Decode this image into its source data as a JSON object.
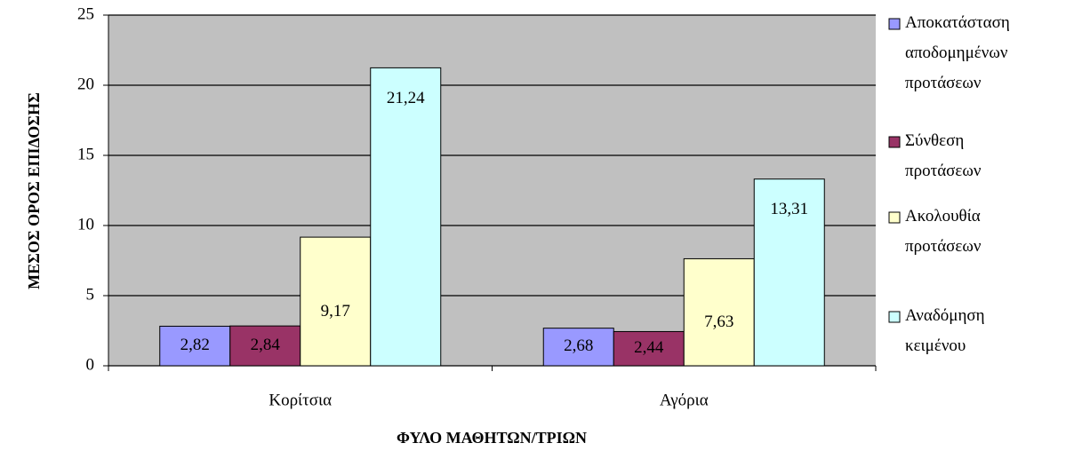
{
  "chart_data": {
    "type": "bar",
    "y_label": "ΜΕΣΟΣ ΟΡΟΣ ΕΠΙΔΟΣΗΣ",
    "x_label": "ΦΥΛΟ ΜΑΘΗΤΩΝ/ΤΡΙΩΝ",
    "categories": [
      "Κορίτσια",
      "Αγόρια"
    ],
    "series": [
      {
        "name": "Αποκατάσταση αποδομημένων προτάσεων",
        "color": "#9999ff",
        "values": [
          2.82,
          2.68
        ],
        "value_labels": [
          "2,82",
          "2,68"
        ]
      },
      {
        "name": "Σύνθεση προτάσεων",
        "color": "#993366",
        "values": [
          2.84,
          2.44
        ],
        "value_labels": [
          "2,84",
          "2,44"
        ]
      },
      {
        "name": "Ακολουθία προτάσεων",
        "color": "#ffffcc",
        "values": [
          9.17,
          7.63
        ],
        "value_labels": [
          "9,17",
          "7,63"
        ]
      },
      {
        "name": "Αναδόμηση κειμένου",
        "color": "#ccffff",
        "values": [
          21.24,
          13.31
        ],
        "value_labels": [
          "21,24",
          "13,31"
        ]
      }
    ],
    "ylim": [
      0,
      25
    ],
    "yticks": [
      0,
      5,
      10,
      15,
      20,
      25
    ],
    "grid": true,
    "legend": "right"
  }
}
